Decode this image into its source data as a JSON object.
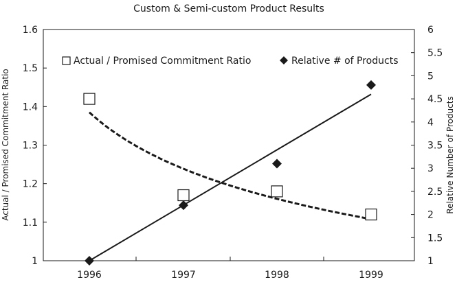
{
  "chart_data": {
    "type": "scatter",
    "title": "Custom & Semi-custom Product Results",
    "x_ticks": [
      "1996",
      "1997",
      "1998",
      "1999"
    ],
    "y_left": {
      "label": "Actual / Promised Commitment Ratio",
      "ylim": [
        1,
        1.6
      ],
      "ticks": [
        "1",
        "1.1",
        "1.2",
        "1.3",
        "1.4",
        "1.5",
        "1.6"
      ]
    },
    "y_right": {
      "label": "Relative Number of Products",
      "ylim": [
        1,
        6
      ],
      "ticks": [
        "1",
        "1.5",
        "2",
        "2.5",
        "3",
        "3.5",
        "4",
        "4.5",
        "5",
        "5.5",
        "6"
      ]
    },
    "legend": {
      "placement": "top",
      "entries": [
        {
          "label": "Actual / Promised Commitment Ratio",
          "marker": "open-square"
        },
        {
          "label": "Relative # of Products",
          "marker": "filled-diamond"
        }
      ]
    },
    "series": [
      {
        "name": "Actual / Promised Commitment Ratio",
        "axis": "left",
        "marker": "open-square",
        "x": [
          "1996",
          "1997",
          "1998",
          "1999"
        ],
        "values": [
          1.42,
          1.17,
          1.18,
          1.12
        ],
        "trendline": {
          "style": "dashed",
          "kind": "power",
          "start": 1.385,
          "end": 1.108
        }
      },
      {
        "name": "Relative # of Products",
        "axis": "right",
        "marker": "filled-diamond",
        "x": [
          "1996",
          "1997",
          "1998",
          "1999"
        ],
        "values": [
          1.0,
          2.2,
          3.1,
          4.8
        ],
        "trendline": {
          "style": "solid",
          "kind": "linear",
          "start": 1.0,
          "end": 4.6
        }
      }
    ],
    "grid": false,
    "colors": {
      "ink": "#1a1a1a",
      "background": "#ffffff"
    }
  }
}
